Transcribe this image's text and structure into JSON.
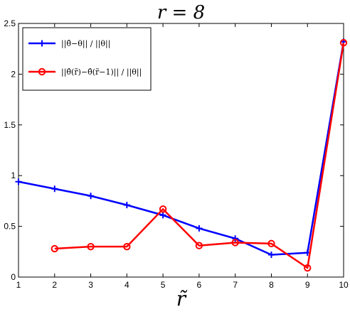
{
  "chart_data": {
    "type": "line",
    "title": "r = 8",
    "xlabel": "r̃",
    "ylabel": "",
    "xlim": [
      1,
      10
    ],
    "ylim": [
      0,
      2.5
    ],
    "xticks": [
      1,
      2,
      3,
      4,
      5,
      6,
      7,
      8,
      9,
      10
    ],
    "yticks": [
      0,
      0.5,
      1,
      1.5,
      2,
      2.5
    ],
    "ytick_labels": [
      "0",
      "0.5",
      "1",
      "1.5",
      "2",
      "2.5"
    ],
    "grid": false,
    "legend_position": "top-left",
    "series": [
      {
        "name": "||θ̂−θ|| / ||θ||",
        "color": "#0000ff",
        "marker": "plus",
        "x": [
          1,
          2,
          3,
          4,
          5,
          6,
          7,
          8,
          9,
          10
        ],
        "values": [
          0.94,
          0.87,
          0.8,
          0.71,
          0.61,
          0.48,
          0.38,
          0.22,
          0.24,
          2.32
        ]
      },
      {
        "name": "||θ̂(r̃)−θ̂(r̃−1)|| / ||θ||",
        "color": "#ff0000",
        "marker": "circle",
        "x": [
          2,
          3,
          4,
          5,
          6,
          7,
          8,
          9,
          10
        ],
        "values": [
          0.28,
          0.3,
          0.3,
          0.67,
          0.31,
          0.34,
          0.33,
          0.09,
          2.31
        ]
      }
    ]
  }
}
